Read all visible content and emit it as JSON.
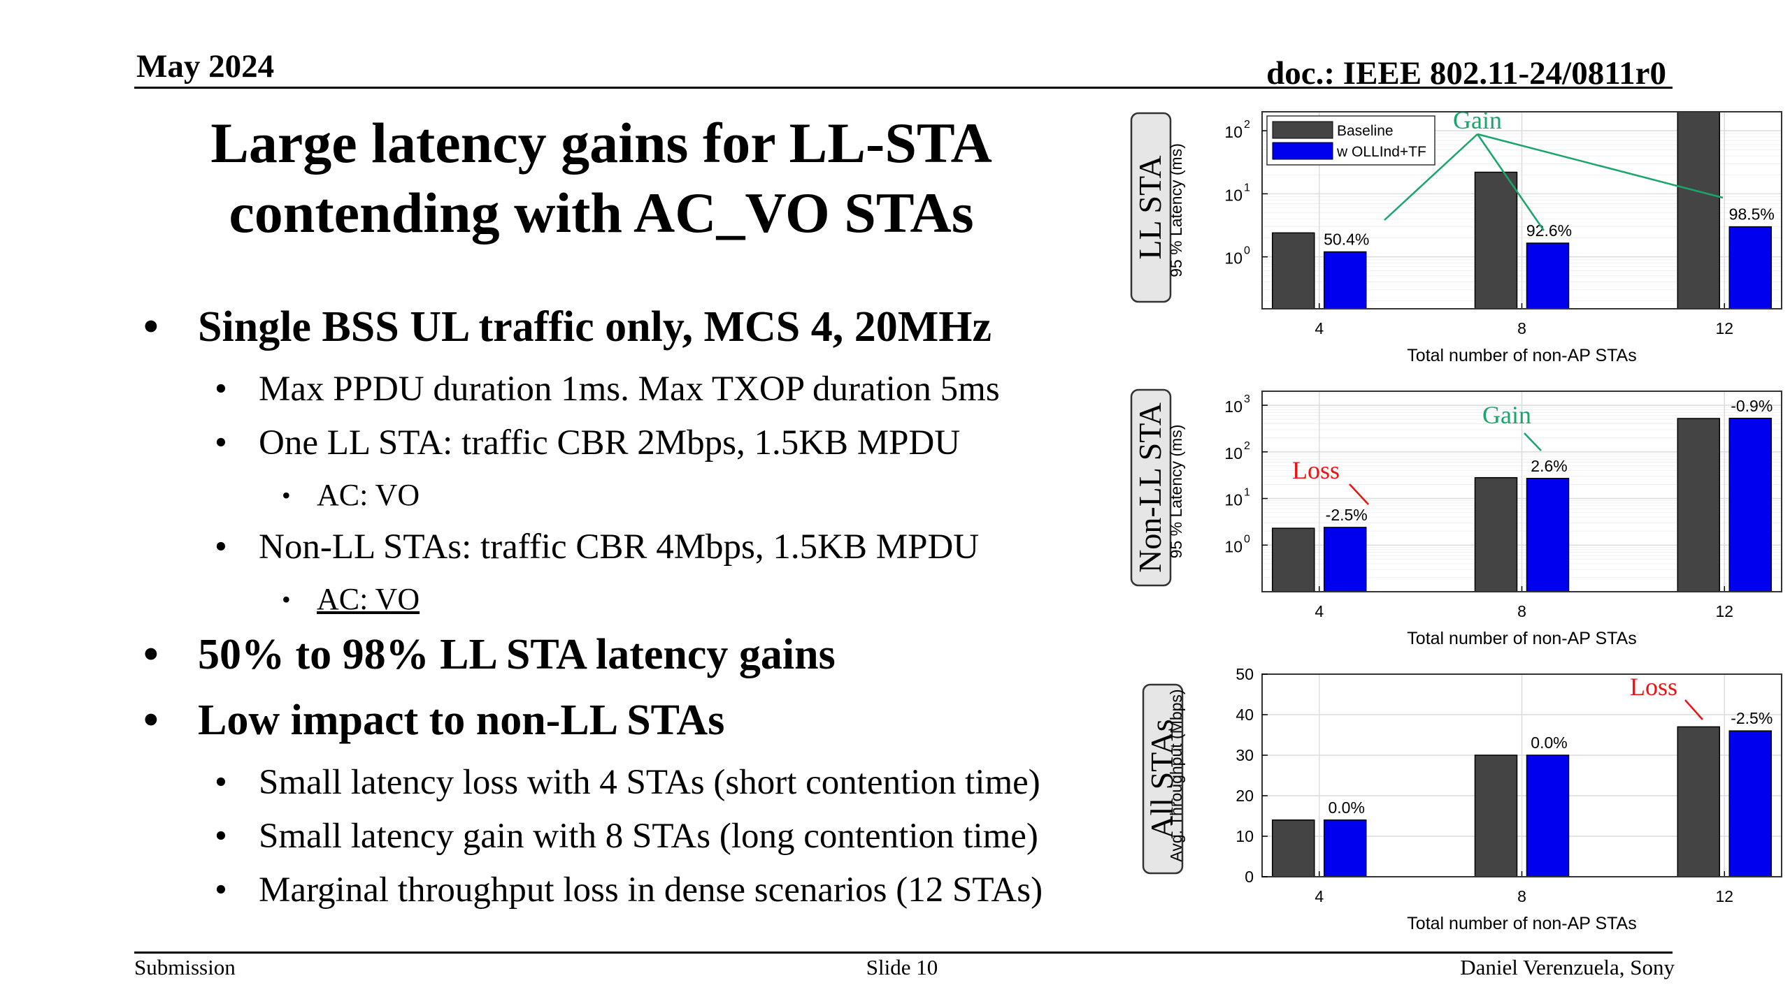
{
  "header": {
    "date": "May 2024",
    "doc": "doc.: IEEE 802.11-24/0811r0"
  },
  "title": {
    "line1": "Large latency gains for LL-STA",
    "line2": "contending with AC_VO STAs"
  },
  "bullets": {
    "b1": "Single BSS UL traffic only, MCS 4, 20MHz",
    "b1_1": "Max PPDU duration 1ms. Max TXOP duration 5ms",
    "b1_2": "One LL STA: traffic CBR 2Mbps, 1.5KB MPDU",
    "b1_2_1": "AC: VO",
    "b1_3": "Non-LL STAs: traffic CBR 4Mbps, 1.5KB MPDU",
    "b1_3_1": "AC: VO",
    "b2": "50% to 98% LL STA latency gains",
    "b3": "Low impact to non-LL STAs",
    "b3_1": "Small latency loss with 4 STAs (short contention time)",
    "b3_2": "Small latency gain with 8 STAs (long contention time)",
    "b3_3": "Marginal throughput loss in dense scenarios (12 STAs)"
  },
  "footer": {
    "left": "Submission",
    "center": "Slide 10",
    "right": "Daniel Verenzuela, Sony"
  },
  "colors": {
    "baseline": "#444444",
    "ollind": "#0000ee",
    "gain": "#1aa56b",
    "loss": "#ee1111"
  },
  "chart_data": [
    {
      "type": "bar",
      "panel_label": "LL STA",
      "categories": [
        "4",
        "8",
        "12"
      ],
      "series": [
        {
          "name": "Baseline",
          "values": [
            2.4,
            22,
            200
          ]
        },
        {
          "name": "w OLLInd+TF",
          "values": [
            1.2,
            1.65,
            3.0
          ]
        }
      ],
      "y_scale": "log",
      "ylim": [
        0.15,
        200
      ],
      "yticks": [
        1,
        10,
        100
      ],
      "ytick_labels": [
        [
          "10",
          "0"
        ],
        [
          "10",
          "1"
        ],
        [
          "10",
          "2"
        ]
      ],
      "ylabel": "95 % Latency (ms)",
      "xlabel": "Total number of non-AP STAs",
      "legend": "top-left",
      "grid": true,
      "bar_labels": [
        "50.4%",
        "92.6%",
        "98.5%"
      ],
      "annotation": {
        "text": "Gain",
        "color": "green"
      }
    },
    {
      "type": "bar",
      "panel_label": "Non-LL STA",
      "categories": [
        "4",
        "8",
        "12"
      ],
      "series": [
        {
          "name": "Baseline",
          "values": [
            2.3,
            28,
            520
          ]
        },
        {
          "name": "w OLLInd+TF",
          "values": [
            2.4,
            27,
            525
          ]
        }
      ],
      "y_scale": "log",
      "ylim": [
        0.1,
        2000
      ],
      "yticks": [
        1,
        10,
        100,
        1000
      ],
      "ytick_labels": [
        [
          "10",
          "0"
        ],
        [
          "10",
          "1"
        ],
        [
          "10",
          "2"
        ],
        [
          "10",
          "3"
        ]
      ],
      "ylabel": "95 % Latency (ms)",
      "xlabel": "Total number of non-AP STAs",
      "grid": true,
      "bar_labels": [
        "-2.5%",
        "2.6%",
        "-0.9%"
      ],
      "annotations": [
        {
          "text": "Loss",
          "color": "red"
        },
        {
          "text": "Gain",
          "color": "green"
        }
      ]
    },
    {
      "type": "bar",
      "panel_label": "All STAs",
      "categories": [
        "4",
        "8",
        "12"
      ],
      "series": [
        {
          "name": "Baseline",
          "values": [
            14,
            30,
            37
          ]
        },
        {
          "name": "w OLLInd+TF",
          "values": [
            14,
            30,
            36
          ]
        }
      ],
      "y_scale": "linear",
      "ylim": [
        0,
        50
      ],
      "yticks": [
        0,
        10,
        20,
        30,
        40,
        50
      ],
      "ytick_labels": [
        "0",
        "10",
        "20",
        "30",
        "40",
        "50"
      ],
      "ylabel": "Avg. Throughput (Mbps)",
      "xlabel": "Total number of non-AP STAs",
      "grid": true,
      "bar_labels": [
        "0.0%",
        "0.0%",
        "-2.5%"
      ],
      "annotation": {
        "text": "Loss",
        "color": "red"
      }
    }
  ]
}
